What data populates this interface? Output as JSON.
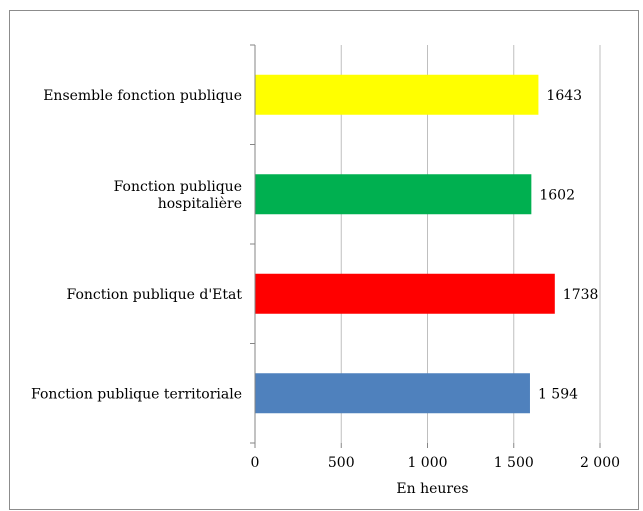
{
  "chart_data": {
    "type": "bar",
    "orientation": "horizontal",
    "categories": [
      [
        "Ensemble fonction publique"
      ],
      [
        "Fonction publique",
        "hospitalière"
      ],
      [
        "Fonction publique d'Etat"
      ],
      [
        "Fonction publique territoriale"
      ]
    ],
    "values": [
      1643,
      1602,
      1738,
      1594
    ],
    "value_labels": [
      "1643",
      "1602",
      "1738",
      "1 594"
    ],
    "colors": [
      "#ffff00",
      "#00b050",
      "#ff0000",
      "#4f81bd"
    ],
    "xlabel": "En heures",
    "xlim": [
      0,
      2000
    ],
    "xticks": [
      0,
      500,
      1000,
      1500,
      2000
    ],
    "xtick_labels": [
      "0",
      "500",
      "1 000",
      "1 500",
      "2 000"
    ],
    "grid": "vertical",
    "legend": "none"
  }
}
